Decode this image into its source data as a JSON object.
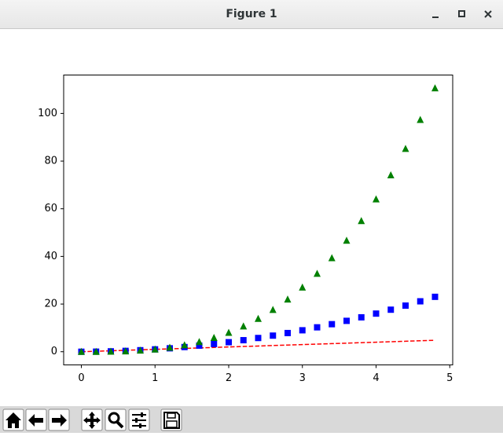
{
  "window": {
    "title": "Figure 1"
  },
  "chart_data": {
    "type": "line",
    "x": [
      0,
      0.2,
      0.4,
      0.6,
      0.8,
      1,
      1.2,
      1.4,
      1.6,
      1.8,
      2,
      2.2,
      2.4,
      2.6,
      2.8,
      3,
      3.2,
      3.4,
      3.6,
      3.8,
      4,
      4.2,
      4.4,
      4.6,
      4.8
    ],
    "series": [
      {
        "color": "#ff0000",
        "style": "dashed",
        "values": [
          0,
          0.2,
          0.4,
          0.6,
          0.8,
          1,
          1.2,
          1.4,
          1.6,
          1.8,
          2,
          2.2,
          2.4,
          2.6,
          2.8,
          3,
          3.2,
          3.4,
          3.6,
          3.8,
          4,
          4.2,
          4.4,
          4.6,
          4.8
        ]
      },
      {
        "color": "#0000ff",
        "style": "square",
        "values": [
          0,
          0.04,
          0.16,
          0.36,
          0.64,
          1,
          1.44,
          1.96,
          2.56,
          3.24,
          4,
          4.84,
          5.76,
          6.76,
          7.84,
          9,
          10.24,
          11.56,
          12.96,
          14.44,
          16,
          17.64,
          19.36,
          21.16,
          23.04
        ]
      },
      {
        "color": "#008000",
        "style": "triangle",
        "values": [
          0,
          0.008,
          0.064,
          0.216,
          0.512,
          1,
          1.728,
          2.744,
          4.096,
          5.832,
          8,
          10.648,
          13.824,
          17.576,
          21.952,
          27,
          32.768,
          39.304,
          46.656,
          54.872,
          64,
          74.088,
          85.184,
          97.336,
          110.592
        ]
      }
    ],
    "xlim": [
      -0.24,
      5.04
    ],
    "ylim": [
      -5.53,
      116.12
    ],
    "xticks": [
      0,
      1,
      2,
      3,
      4,
      5
    ],
    "yticks": [
      0,
      20,
      40,
      60,
      80,
      100
    ],
    "grid": false
  }
}
